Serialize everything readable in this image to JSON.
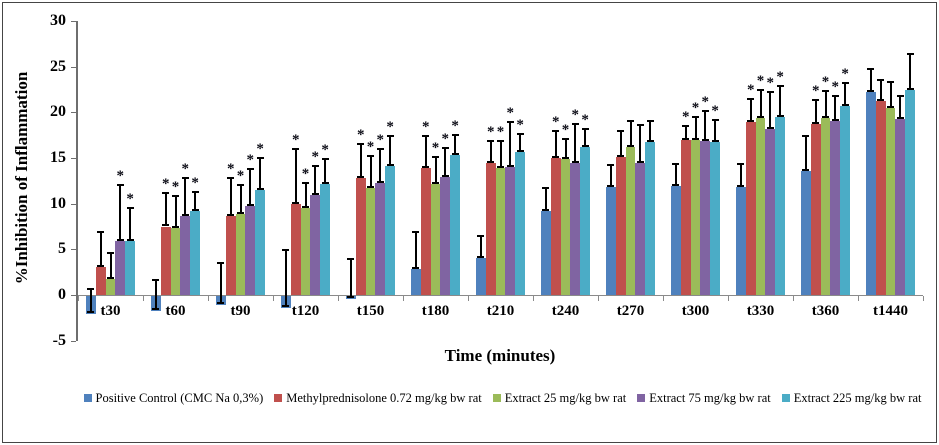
{
  "window": {
    "background": "#ffffff",
    "border_color": "#454545"
  },
  "chart_data": {
    "type": "bar",
    "title": "",
    "xlabel": "Time (minutes)",
    "ylabel": "%Inhibition of Inflammation",
    "ylim": [
      -5,
      30
    ],
    "yticks": [
      30,
      25,
      20,
      15,
      10,
      5,
      0,
      -5
    ],
    "grid": false,
    "legend_position": "bottom",
    "significance_marker": "*",
    "error_bars": "upper whiskers with caps, black",
    "categories": [
      "t30",
      "t60",
      "t90",
      "t120",
      "t150",
      "t180",
      "t210",
      "t240",
      "t270",
      "t300",
      "t330",
      "t360",
      "t1440"
    ],
    "series": [
      {
        "name": "Positive Control (CMC Na 0,3%)",
        "color": "#4F81BD",
        "values": [
          -2.0,
          -1.6,
          -1.0,
          -1.3,
          -0.3,
          2.8,
          4.0,
          9.2,
          11.8,
          11.9,
          11.8,
          13.6,
          22.2
        ],
        "error_top": [
          0.8,
          1.7,
          3.6,
          5.0,
          4.1,
          7.0,
          6.6,
          11.8,
          14.3,
          14.4,
          14.5,
          17.5,
          24.8
        ],
        "significant": [
          false,
          false,
          false,
          false,
          false,
          false,
          false,
          false,
          false,
          false,
          false,
          false,
          false
        ]
      },
      {
        "name": "Methylprednisolone 0.72 mg/kg bw rat",
        "color": "#C0504D",
        "values": [
          3.1,
          7.5,
          8.7,
          10.0,
          12.8,
          13.9,
          14.5,
          15.0,
          15.1,
          17.0,
          18.9,
          18.7,
          21.2
        ],
        "error_top": [
          7.0,
          11.3,
          12.9,
          16.1,
          16.6,
          17.5,
          17.0,
          18.1,
          18.1,
          18.6,
          21.6,
          21.5,
          23.7
        ],
        "significant": [
          false,
          true,
          true,
          true,
          true,
          true,
          true,
          true,
          false,
          true,
          true,
          true,
          false
        ]
      },
      {
        "name": "Extract 25 mg/kg bw rat",
        "color": "#9BBB59",
        "values": [
          1.8,
          7.3,
          8.9,
          9.5,
          11.7,
          12.1,
          13.9,
          14.9,
          16.2,
          17.0,
          19.4,
          19.4,
          20.5
        ],
        "error_top": [
          4.7,
          11.0,
          12.2,
          12.4,
          15.3,
          15.2,
          17.0,
          17.2,
          19.2,
          19.6,
          22.6,
          22.5,
          23.4
        ],
        "significant": [
          false,
          true,
          true,
          true,
          true,
          true,
          true,
          true,
          false,
          true,
          true,
          true,
          false
        ]
      },
      {
        "name": "Extract 75 mg/kg bw rat",
        "color": "#8064A2",
        "values": [
          5.9,
          8.6,
          9.7,
          11.0,
          12.3,
          12.9,
          14.0,
          14.5,
          14.4,
          16.9,
          18.2,
          19.1,
          19.3
        ],
        "error_top": [
          12.1,
          12.9,
          13.9,
          14.2,
          16.1,
          16.2,
          19.0,
          18.8,
          18.7,
          20.3,
          22.3,
          21.9,
          21.9
        ],
        "significant": [
          true,
          true,
          true,
          true,
          true,
          true,
          true,
          true,
          false,
          true,
          true,
          true,
          false
        ]
      },
      {
        "name": "Extract 225 mg/kg bw rat",
        "color": "#4BACC6",
        "values": [
          5.9,
          9.2,
          11.5,
          12.1,
          14.1,
          15.3,
          15.7,
          16.2,
          16.8,
          16.7,
          19.5,
          20.7,
          22.4
        ],
        "error_top": [
          9.6,
          11.4,
          15.1,
          15.0,
          17.5,
          17.6,
          17.7,
          18.3,
          19.2,
          19.3,
          23.0,
          23.3,
          26.5
        ],
        "significant": [
          true,
          true,
          true,
          true,
          true,
          true,
          true,
          true,
          false,
          true,
          true,
          true,
          false
        ]
      }
    ]
  }
}
